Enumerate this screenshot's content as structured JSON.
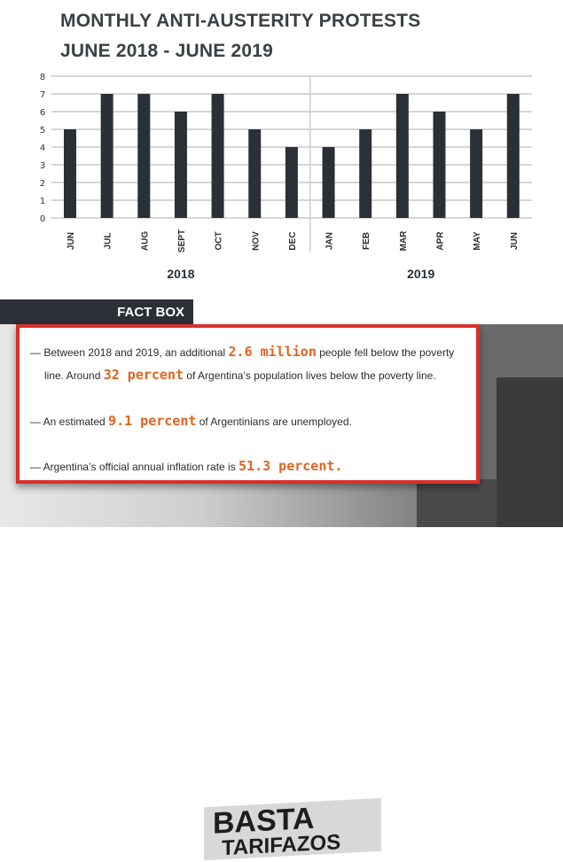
{
  "title_line1": "MONTHLY ANTI-AUSTERITY PROTESTS",
  "title_line2": "JUNE 2018 - JUNE 2019",
  "chart_data": {
    "type": "bar",
    "categories": [
      "JUN",
      "JUL",
      "AUG",
      "SEPT",
      "OCT",
      "NOV",
      "DEC",
      "JAN",
      "FEB",
      "MAR",
      "APR",
      "MAY",
      "JUN"
    ],
    "groups": [
      {
        "label": "2018",
        "count": 7
      },
      {
        "label": "2019",
        "count": 6
      }
    ],
    "values": [
      5,
      7,
      7,
      6,
      7,
      5,
      4,
      4,
      5,
      7,
      6,
      5,
      7
    ],
    "ylim": [
      0,
      8
    ],
    "yticks": [
      0,
      1,
      2,
      3,
      4,
      5,
      6,
      7,
      8
    ],
    "grid": true,
    "bar_color": "#2b3036"
  },
  "factbox": {
    "header": "FACT BOX",
    "accent": "#e0641f",
    "border": "#d9302a",
    "lines": [
      {
        "pre": "— Between 2018 and 2019, an additional ",
        "hl": "2.6 million",
        "post": " people fell below the poverty"
      },
      {
        "pre": "line. Around ",
        "hl": "32 percent",
        "post": " of Argentina’s population lives below the poverty line."
      },
      {
        "pre": "— An estimated ",
        "hl": "9.1 percent",
        "post": " of Argentinians are unemployed."
      },
      {
        "pre": "— Argentina’s official annual inflation rate is ",
        "hl": "51.3 percent.",
        "post": ""
      }
    ]
  },
  "photo": {
    "banner_text1": "BASTA",
    "banner_text2": "TARIFAZOS"
  }
}
